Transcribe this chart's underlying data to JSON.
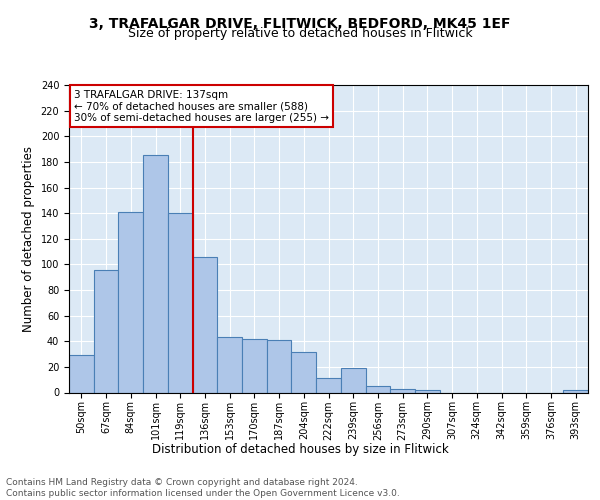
{
  "title1": "3, TRAFALGAR DRIVE, FLITWICK, BEDFORD, MK45 1EF",
  "title2": "Size of property relative to detached houses in Flitwick",
  "xlabel": "Distribution of detached houses by size in Flitwick",
  "ylabel": "Number of detached properties",
  "categories": [
    "50sqm",
    "67sqm",
    "84sqm",
    "101sqm",
    "119sqm",
    "136sqm",
    "153sqm",
    "170sqm",
    "187sqm",
    "204sqm",
    "222sqm",
    "239sqm",
    "256sqm",
    "273sqm",
    "290sqm",
    "307sqm",
    "324sqm",
    "342sqm",
    "359sqm",
    "376sqm",
    "393sqm"
  ],
  "values": [
    29,
    96,
    141,
    185,
    140,
    106,
    43,
    42,
    41,
    32,
    11,
    19,
    5,
    3,
    2,
    0,
    0,
    0,
    0,
    0,
    2
  ],
  "bar_color": "#aec6e8",
  "bar_edge_color": "#4a7fb5",
  "vline_index": 5,
  "vline_color": "#cc0000",
  "annotation_text": "3 TRAFALGAR DRIVE: 137sqm\n← 70% of detached houses are smaller (588)\n30% of semi-detached houses are larger (255) →",
  "annotation_box_color": "#cc0000",
  "footer_text": "Contains HM Land Registry data © Crown copyright and database right 2024.\nContains public sector information licensed under the Open Government Licence v3.0.",
  "ylim": [
    0,
    240
  ],
  "yticks": [
    0,
    20,
    40,
    60,
    80,
    100,
    120,
    140,
    160,
    180,
    200,
    220,
    240
  ],
  "background_color": "#dce9f5",
  "grid_color": "#ffffff",
  "title1_fontsize": 10,
  "title2_fontsize": 9,
  "xlabel_fontsize": 8.5,
  "ylabel_fontsize": 8.5,
  "tick_fontsize": 7,
  "annotation_fontsize": 7.5,
  "footer_fontsize": 6.5
}
